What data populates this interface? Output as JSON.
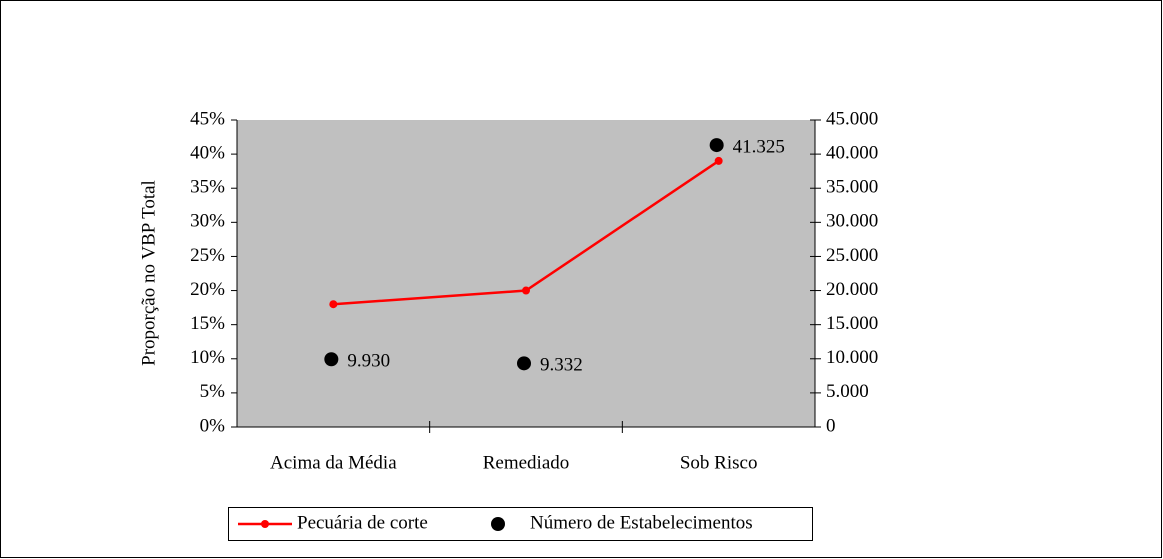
{
  "chart_data": {
    "type": "line",
    "y_label": "Proporção no VBP Total",
    "categories": [
      "Acima da Média",
      "Remediado",
      "Sob Risco"
    ],
    "series": [
      {
        "name": "Pecuária de corte",
        "type": "line",
        "color": "#ff0000",
        "values": [
          18,
          20,
          39
        ]
      },
      {
        "name": "Número de Estabelecimentos",
        "type": "scatter",
        "color": "#000000",
        "axis": "y2",
        "values": [
          9930,
          9332,
          41325
        ],
        "value_labels": [
          "9.930",
          "9.332",
          "41.325"
        ]
      }
    ],
    "ylim": [
      0,
      45
    ],
    "yticks": [
      {
        "value": 0,
        "label": "0%"
      },
      {
        "value": 5,
        "label": "5%"
      },
      {
        "value": 10,
        "label": "10%"
      },
      {
        "value": 15,
        "label": "15%"
      },
      {
        "value": 20,
        "label": "20%"
      },
      {
        "value": 25,
        "label": "25%"
      },
      {
        "value": 30,
        "label": "30%"
      },
      {
        "value": 35,
        "label": "35%"
      },
      {
        "value": 40,
        "label": "40%"
      },
      {
        "value": 45,
        "label": "45%"
      }
    ],
    "y2lim": [
      0,
      45000
    ],
    "y2ticks": [
      0,
      {
        "value": 5000,
        "label": "5.000"
      },
      {
        "value": 10000,
        "label": "10.000"
      },
      {
        "value": 15000,
        "label": "15.000"
      },
      {
        "value": 20000,
        "label": "20.000"
      },
      {
        "value": 25000,
        "label": "25.000"
      },
      {
        "value": 30000,
        "label": "30.000"
      },
      {
        "value": 35000,
        "label": "35.000"
      },
      {
        "value": 40000,
        "label": "40.000"
      },
      {
        "value": 45000,
        "label": "45.000"
      }
    ],
    "plot_background": "#c0c0c0",
    "legend": "bottom"
  }
}
